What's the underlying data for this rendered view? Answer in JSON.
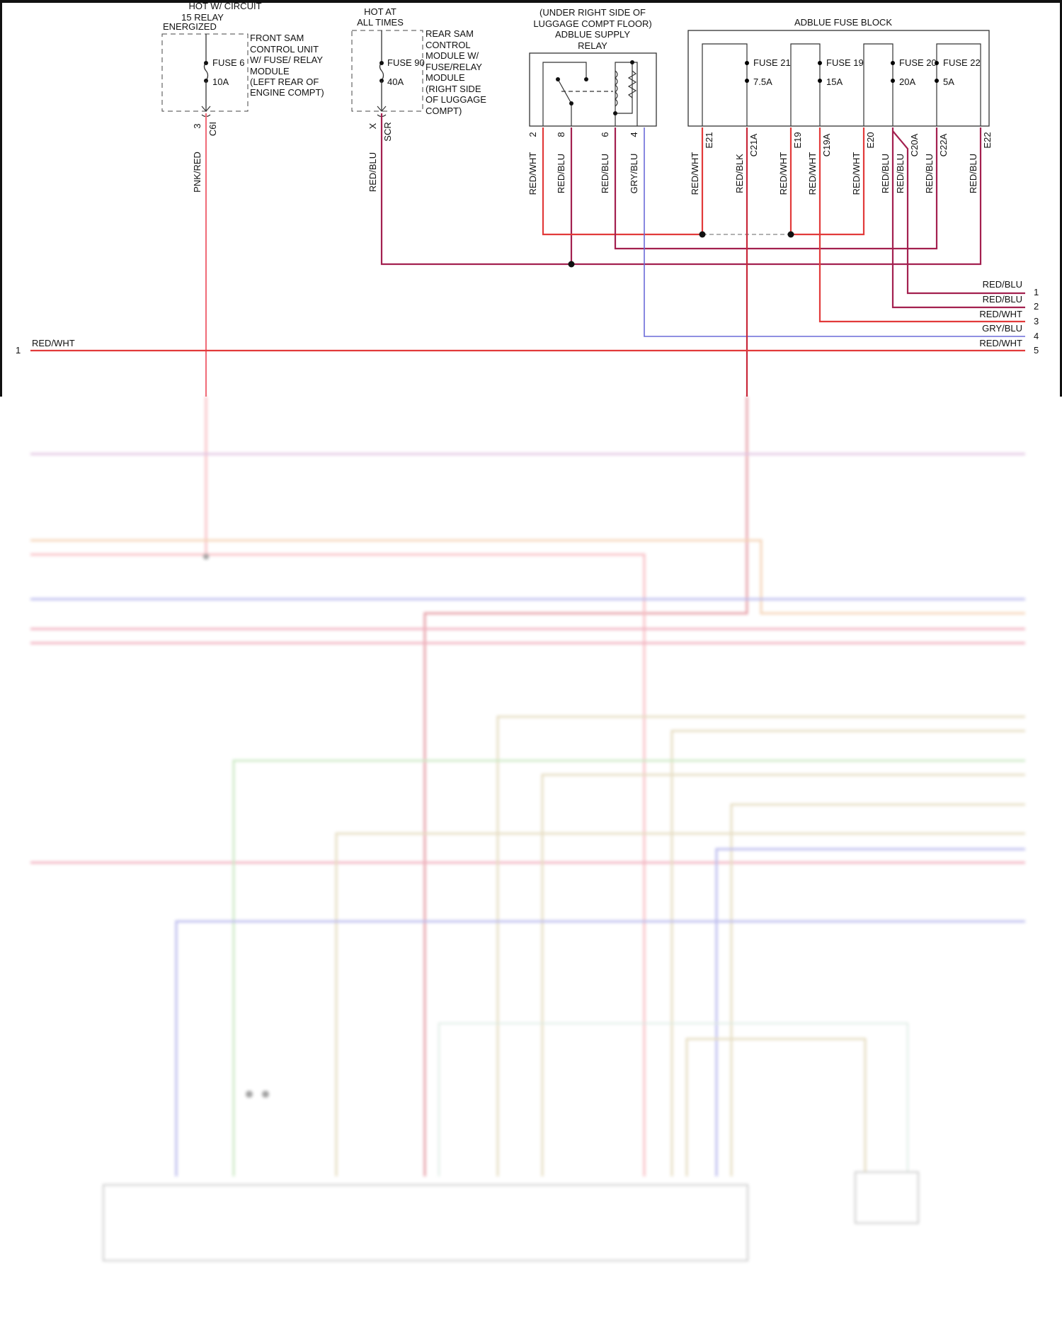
{
  "colors": {
    "red_wht": "#e23a3a",
    "red_blu": "#a3204f",
    "pnk_red": "#f0707c",
    "gry_blu": "#6a6ad8",
    "red_blk": "#c8283a",
    "tan": "#c8b478",
    "orange": "#e8a060",
    "green": "#90d080"
  },
  "fuse6": {
    "header": [
      "HOT W/ CIRCUIT",
      "15 RELAY",
      "ENERGIZED"
    ],
    "module": [
      "FRONT SAM",
      "CONTROL UNIT",
      "W/ FUSE/ RELAY",
      "MODULE",
      "(LEFT REAR OF",
      "ENGINE COMPT)"
    ],
    "fuse_name": "FUSE 6",
    "rating": "10A",
    "pin": "3",
    "connector": "C6I",
    "wire": "PNK/RED"
  },
  "fuse90": {
    "header": [
      "HOT AT",
      "ALL TIMES"
    ],
    "module": [
      "REAR SAM",
      "CONTROL",
      "MODULE W/",
      "FUSE/RELAY",
      "MODULE",
      "(RIGHT SIDE",
      "OF LUGGAGE",
      "COMPT)"
    ],
    "fuse_name": "FUSE 90",
    "rating": "40A",
    "pin": "X",
    "connector": "SCR",
    "wire": "RED/BLU"
  },
  "relay": {
    "title": [
      "(UNDER RIGHT SIDE OF",
      "LUGGAGE COMPT FLOOR)",
      "ADBLUE SUPPLY",
      "RELAY"
    ],
    "pins": [
      {
        "pin": "2",
        "wire": "RED/WHT"
      },
      {
        "pin": "8",
        "wire": "RED/BLU"
      },
      {
        "pin": "6",
        "wire": "RED/BLU"
      },
      {
        "pin": "4",
        "wire": "GRY/BLU"
      }
    ]
  },
  "fuse_block": {
    "title": "ADBLUE FUSE BLOCK",
    "fuses": [
      {
        "name": "FUSE 21",
        "rating": "7.5A"
      },
      {
        "name": "FUSE 19",
        "rating": "15A"
      },
      {
        "name": "FUSE 20",
        "rating": "20A"
      },
      {
        "name": "FUSE 22",
        "rating": "5A"
      }
    ],
    "pins": [
      {
        "connector": "E21",
        "wire": "RED/WHT"
      },
      {
        "connector": "C21A",
        "wire": "RED/BLK"
      },
      {
        "connector": "E19",
        "wire": "RED/WHT"
      },
      {
        "connector": "C19A",
        "wire": "RED/WHT"
      },
      {
        "connector": "E20",
        "wire": "RED/WHT"
      },
      {
        "connector": "C20A",
        "wire": "RED/BLU",
        "wire2": "RED/BLU"
      },
      {
        "connector": "C22A",
        "wire": "RED/BLU"
      },
      {
        "connector": "E22",
        "wire": "RED/BLU"
      }
    ]
  },
  "right_connectors": [
    {
      "num": "1",
      "wire": "RED/BLU"
    },
    {
      "num": "2",
      "wire": "RED/BLU"
    },
    {
      "num": "3",
      "wire": "RED/WHT"
    },
    {
      "num": "4",
      "wire": "GRY/BLU"
    },
    {
      "num": "5",
      "wire": "RED/WHT"
    }
  ],
  "left_connector": {
    "num": "1",
    "wire": "RED/WHT"
  }
}
